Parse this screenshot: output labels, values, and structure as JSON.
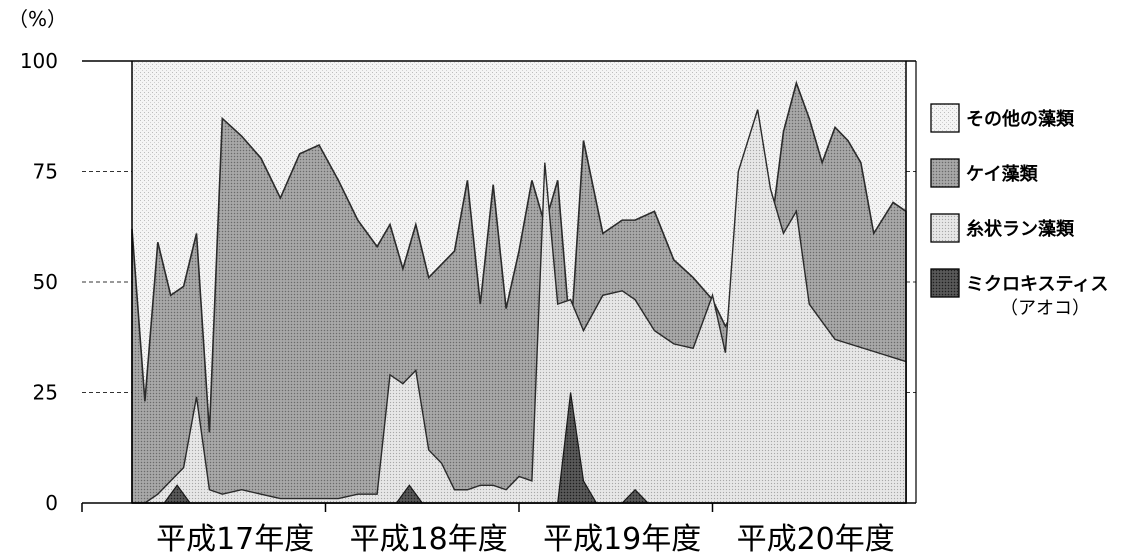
{
  "chart_data": {
    "type": "area",
    "stacked": true,
    "y_unit_label": "（%）",
    "ylim": [
      0,
      100
    ],
    "y_ticks": [
      0,
      25,
      50,
      75,
      100
    ],
    "xlim": [
      0,
      60
    ],
    "x_period_labels": [
      "平成17年度",
      "平成18年度",
      "平成19年度",
      "平成20年度"
    ],
    "x_period_label_positions": [
      8,
      23,
      38,
      53
    ],
    "x_period_boundaries": [
      0,
      15,
      30,
      45,
      60
    ],
    "legend_position": "right",
    "series": [
      {
        "name": "その他の藻類",
        "color": "#f1f1f1",
        "pattern": "dots-light"
      },
      {
        "name": "ケイ藻類",
        "color": "#9a9a9a",
        "pattern": "dots-dark"
      },
      {
        "name": "糸状ラン藻類",
        "color": "#dedede",
        "pattern": "dots-mid"
      },
      {
        "name": "ミクロキスティス",
        "name_sub": "（アオコ）",
        "color": "#4a4a4a",
        "pattern": "dots-darkest"
      }
    ],
    "x": [
      0,
      1,
      2,
      3,
      4,
      5,
      6,
      7,
      8,
      9,
      10,
      11,
      12,
      13,
      14,
      15,
      16,
      17,
      18,
      19,
      20,
      21,
      22,
      23,
      24,
      25,
      26,
      27,
      28,
      29,
      30,
      31,
      32,
      33,
      34,
      35,
      36,
      37,
      38,
      39,
      40,
      41,
      42,
      43,
      44,
      45,
      46,
      47,
      48,
      49,
      50,
      51,
      52,
      53,
      54,
      55,
      56,
      57,
      58,
      59,
      60
    ],
    "cumulative_diatom_top": [
      62,
      23,
      59,
      47,
      49,
      61,
      16,
      87,
      83,
      78,
      69,
      79,
      81,
      73,
      64,
      58,
      63,
      53,
      63,
      51,
      54,
      57,
      73,
      45,
      72,
      44,
      57,
      73,
      63,
      73,
      37,
      82,
      61,
      64,
      64,
      66,
      55,
      51,
      46,
      40,
      45,
      73,
      61,
      84,
      95,
      87,
      77,
      85,
      82,
      77,
      61,
      68,
      66
    ],
    "cumulative_diatom_x": [
      0,
      1,
      2,
      3,
      4,
      5,
      6,
      7,
      8.5,
      10,
      11.5,
      13,
      14.5,
      16,
      17.5,
      19,
      20,
      21,
      22,
      23,
      24,
      25,
      26,
      27,
      28,
      29,
      30,
      31,
      32,
      33,
      34,
      35,
      36.5,
      38,
      39,
      40.5,
      42,
      43.5,
      45,
      46,
      47,
      48.5,
      49.5,
      50.5,
      51.5,
      52.5,
      53.5,
      54.5,
      55.5,
      56.5,
      57.5,
      59,
      60
    ],
    "cumulative_filamentous_top": [
      0,
      0,
      2,
      5,
      8,
      24,
      3,
      2,
      3,
      2,
      1,
      1,
      1,
      1,
      2,
      2,
      29,
      27,
      30,
      12,
      9,
      3,
      3,
      4,
      4,
      3,
      6,
      5,
      77,
      45,
      46,
      39,
      47,
      48,
      46,
      39,
      36,
      35,
      47,
      34,
      75,
      89,
      71,
      61,
      66,
      45,
      41,
      37,
      32
    ],
    "cumulative_filamentous_x": [
      0,
      1,
      2,
      3,
      4,
      5,
      6,
      7,
      8.5,
      10,
      11.5,
      13,
      14.5,
      16,
      17.5,
      19,
      20,
      21,
      22,
      23,
      24,
      25,
      26,
      27,
      28,
      29,
      30,
      31,
      32,
      33,
      34,
      35,
      36.5,
      38,
      39,
      40.5,
      42,
      43.5,
      45,
      46,
      47,
      48.5,
      49.5,
      50.5,
      51.5,
      52.5,
      53.5,
      54.5,
      60
    ],
    "microcystis": [
      0,
      0,
      0,
      0,
      4,
      0,
      0,
      0,
      0,
      0,
      0,
      0,
      0,
      0,
      0,
      0,
      0,
      0,
      0,
      4,
      0,
      0,
      0,
      0,
      0,
      0,
      0,
      0,
      0,
      0,
      0,
      0,
      25,
      5,
      0,
      0,
      0,
      3,
      0,
      0,
      0,
      0,
      0,
      0,
      0,
      0,
      0,
      0,
      0,
      0,
      0,
      0,
      0
    ],
    "microcystis_x": [
      0,
      1,
      2,
      2.5,
      3.5,
      4.5,
      5,
      6,
      7,
      8.5,
      10,
      11.5,
      13,
      14.5,
      16,
      17.5,
      19,
      20,
      20.5,
      21.5,
      22.5,
      23,
      24,
      25,
      26,
      27,
      28,
      29,
      30,
      31,
      32,
      33,
      34,
      35,
      36,
      37,
      38,
      39,
      40,
      41,
      42,
      43.5,
      45,
      46,
      47,
      48.5,
      49.5,
      50.5,
      51.5,
      52.5,
      53.5,
      54.5,
      60
    ]
  }
}
